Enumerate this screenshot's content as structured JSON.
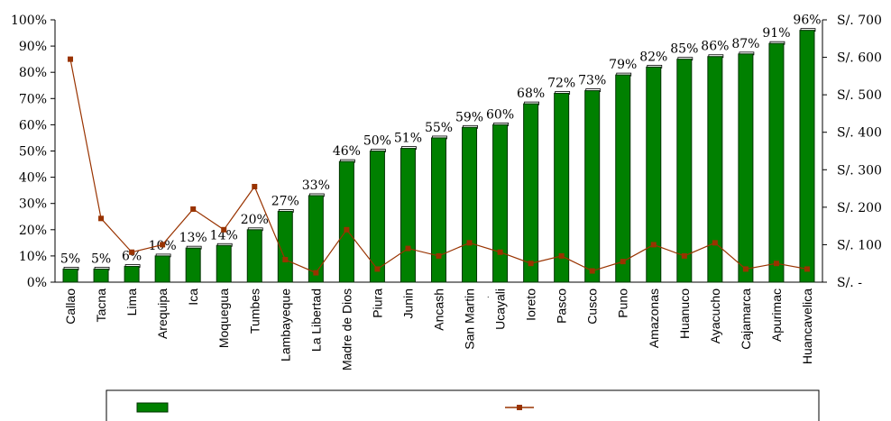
{
  "chart_data": {
    "type": "bar",
    "title": "",
    "categories": [
      "Callao",
      "Tacna",
      "Lima",
      "Arequipa",
      "Ica",
      "Moquegua",
      "Tumbes",
      "Lambayeque",
      "La Libertad",
      "Madre de Dios",
      "Piura",
      "Junin",
      "Ancash",
      "San Martin",
      "Ucayali",
      "Ioreto",
      "Pasco",
      "Cusco",
      "Puno",
      "Amazonas",
      "Huanuco",
      "Ayacucho",
      "Cajamarca",
      "Apurimac",
      "Huancavelica"
    ],
    "series": [
      {
        "type": "bar",
        "axis": "left",
        "color": "#008000",
        "values": [
          5,
          5,
          6,
          10,
          13,
          14,
          20,
          27,
          33,
          46,
          50,
          51,
          55,
          59,
          60,
          68,
          72,
          73,
          79,
          82,
          85,
          86,
          87,
          91,
          96
        ],
        "labels": [
          "5%",
          "5%",
          "6%",
          "10%",
          "13%",
          "14%",
          "20%",
          "27%",
          "33%",
          "46%",
          "50%",
          "51%",
          "55%",
          "59%",
          "60%",
          "68%",
          "72%",
          "73%",
          "79%",
          "82%",
          "85%",
          "86%",
          "87%",
          "91%",
          "96%"
        ]
      },
      {
        "type": "line",
        "axis": "right",
        "color": "#993300",
        "values": [
          595,
          170,
          80,
          100,
          195,
          140,
          255,
          60,
          25,
          140,
          35,
          90,
          70,
          105,
          80,
          50,
          70,
          30,
          55,
          100,
          70,
          105,
          35,
          50,
          35
        ]
      }
    ],
    "y_left": {
      "ylim": [
        0,
        100
      ],
      "ticks": [
        "0%",
        "10%",
        "20%",
        "30%",
        "40%",
        "50%",
        "60%",
        "70%",
        "80%",
        "90%",
        "100%"
      ]
    },
    "y_right": {
      "ylim": [
        0,
        700
      ],
      "ticks": [
        "S/. -",
        "S/. 100",
        "S/. 200",
        "S/. 300",
        "S/. 400",
        "S/. 500",
        "S/. 600",
        "S/. 700"
      ]
    },
    "grid": false,
    "legend": {
      "position": "bottom",
      "entries": [
        "",
        ""
      ]
    }
  },
  "colors": {
    "bar": "#008000",
    "bar_edge": "#003300",
    "line": "#993300",
    "axis": "#000000"
  }
}
